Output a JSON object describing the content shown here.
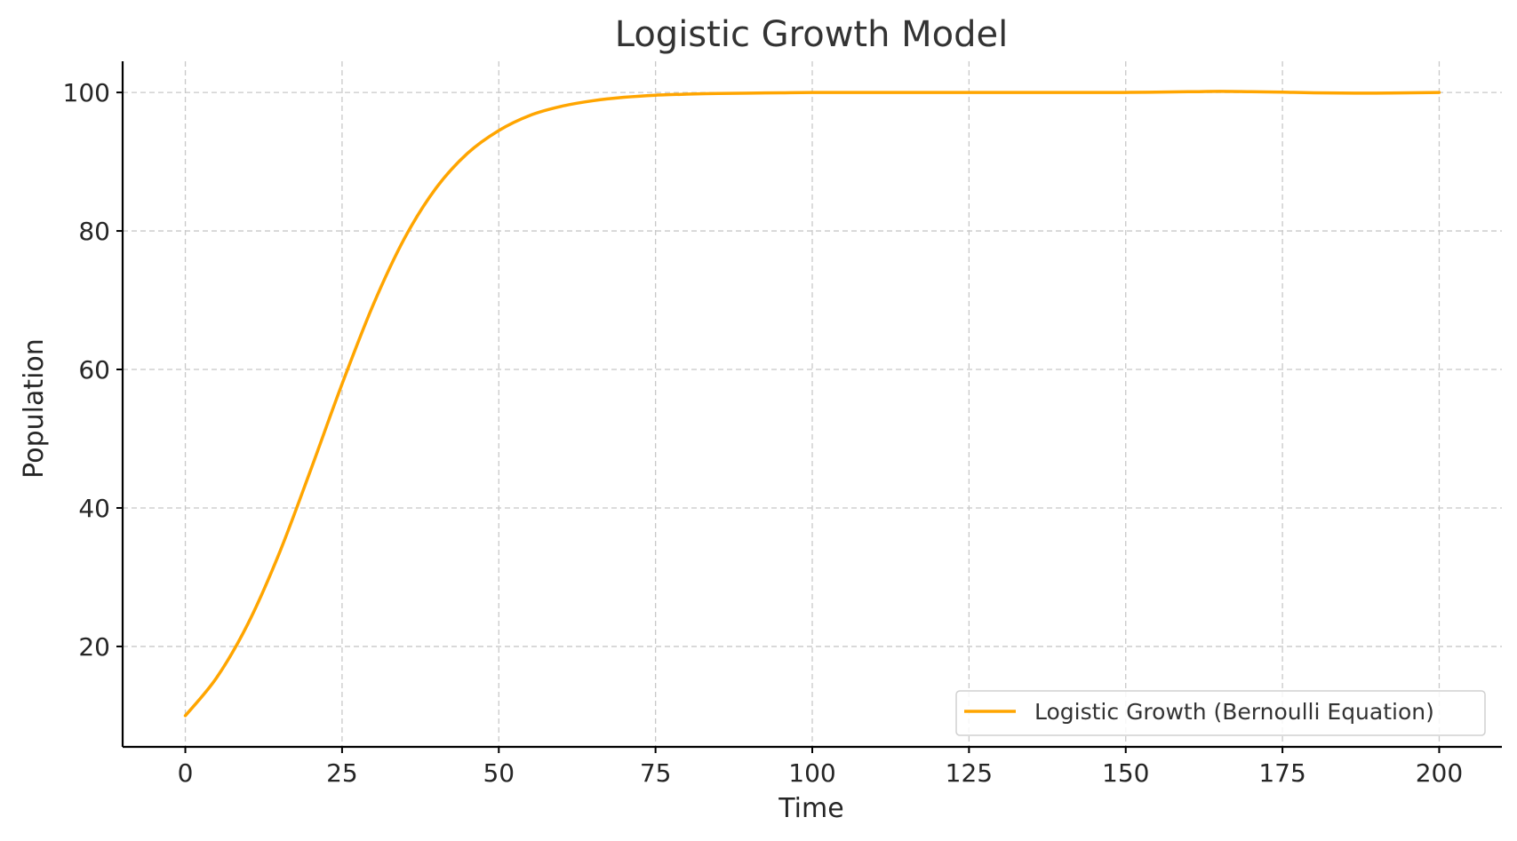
{
  "chart_data": {
    "type": "line",
    "title": "Logistic Growth Model",
    "xlabel": "Time",
    "ylabel": "Population",
    "xlim": [
      -10,
      210
    ],
    "ylim": [
      5.5,
      104.5
    ],
    "xticks": [
      0,
      25,
      50,
      75,
      100,
      125,
      150,
      175,
      200
    ],
    "yticks": [
      20,
      40,
      60,
      80,
      100
    ],
    "grid": true,
    "legend_position": "lower-right",
    "series": [
      {
        "name": "Logistic Growth (Bernoulli Equation)",
        "color": "#FFA500",
        "x": [
          0,
          5,
          10,
          15,
          20,
          25,
          30,
          35,
          40,
          45,
          50,
          55,
          60,
          65,
          70,
          75,
          80,
          85,
          90,
          95,
          100,
          110,
          120,
          130,
          140,
          150,
          160,
          165,
          170,
          175,
          180,
          190,
          200
        ],
        "y": [
          10,
          15.5,
          23.3,
          33.5,
          45.5,
          57.9,
          69.4,
          79.0,
          86.2,
          91.2,
          94.5,
          96.7,
          98.0,
          98.8,
          99.3,
          99.6,
          99.75,
          99.85,
          99.9,
          99.95,
          100,
          100,
          100,
          100,
          100,
          100,
          100.1,
          100.15,
          100.1,
          100.05,
          99.95,
          99.9,
          100
        ]
      }
    ]
  }
}
